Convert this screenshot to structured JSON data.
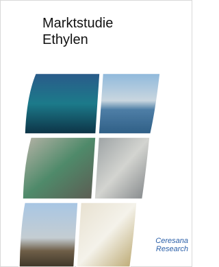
{
  "title": [
    "Marktstudie",
    "Ethylen"
  ],
  "publisher": [
    "Ceresana",
    "Research"
  ]
}
